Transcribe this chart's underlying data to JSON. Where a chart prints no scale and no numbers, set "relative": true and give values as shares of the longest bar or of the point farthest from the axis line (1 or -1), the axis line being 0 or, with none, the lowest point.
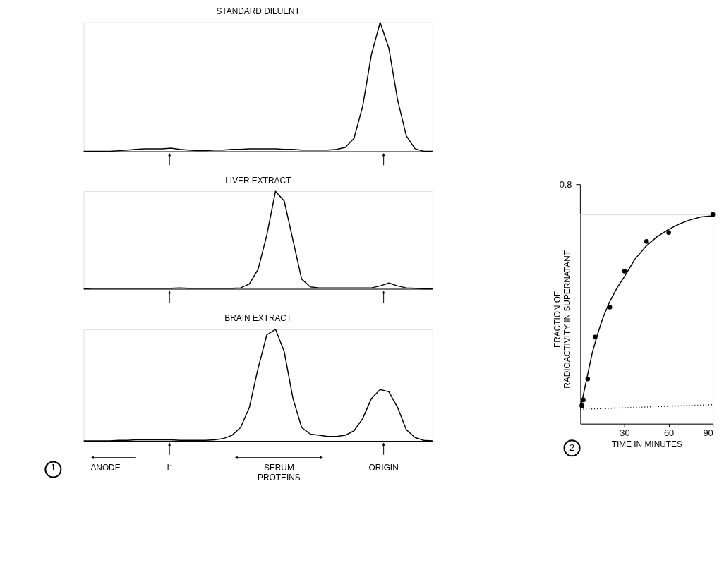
{
  "chart_data": [
    {
      "type": "line",
      "title": "STANDARD DILUENT",
      "relative": true,
      "categories": [
        null,
        null,
        null,
        null,
        null,
        null,
        null,
        null,
        null,
        null,
        null,
        null,
        null,
        null,
        null,
        null,
        null,
        null,
        null,
        null,
        null,
        null,
        null,
        null,
        null,
        null,
        null,
        null,
        null,
        null,
        null,
        null,
        null,
        null,
        null,
        null,
        null,
        null,
        null,
        null,
        null
      ],
      "series": [
        {
          "color": "#000000",
          "line_style": "solid",
          "values": [
            0,
            0,
            0,
            0,
            0.005,
            0.01,
            0.015,
            0.02,
            0.02,
            0.02,
            0.025,
            0.015,
            0.01,
            0.005,
            0.005,
            0.01,
            0.01,
            0.015,
            0.015,
            0.02,
            0.02,
            0.02,
            0.02,
            0.015,
            0.015,
            0.01,
            0.01,
            0.01,
            0.01,
            0.015,
            0.03,
            0.1,
            0.35,
            0.75,
            1,
            0.8,
            0.4,
            0.12,
            0.02,
            0,
            0
          ]
        }
      ]
    },
    {
      "type": "line",
      "title": "LIVER EXTRACT",
      "relative": true,
      "categories": [
        null,
        null,
        null,
        null,
        null,
        null,
        null,
        null,
        null,
        null,
        null,
        null,
        null,
        null,
        null,
        null,
        null,
        null,
        null,
        null,
        null,
        null,
        null,
        null,
        null,
        null,
        null,
        null,
        null,
        null,
        null,
        null,
        null,
        null,
        null,
        null,
        null,
        null,
        null,
        null,
        null
      ],
      "series": [
        {
          "color": "#000000",
          "line_style": "solid",
          "values": [
            0,
            0.005,
            0.005,
            0.005,
            0.005,
            0.005,
            0.005,
            0.005,
            0.005,
            0.005,
            0.005,
            0.01,
            0.005,
            0.005,
            0.005,
            0.005,
            0.005,
            0.005,
            0.01,
            0.05,
            0.2,
            0.55,
            1,
            0.9,
            0.5,
            0.1,
            0.02,
            0.01,
            0.01,
            0.01,
            0.01,
            0.01,
            0.01,
            0.01,
            0.03,
            0.06,
            0.03,
            0.01,
            0.005,
            0,
            0
          ]
        }
      ]
    },
    {
      "type": "line",
      "title": "BRAIN EXTRACT",
      "relative": true,
      "categories": [
        null,
        null,
        null,
        null,
        null,
        null,
        null,
        null,
        null,
        null,
        null,
        null,
        null,
        null,
        null,
        null,
        null,
        null,
        null,
        null,
        null,
        null,
        null,
        null,
        null,
        null,
        null,
        null,
        null,
        null,
        null,
        null,
        null,
        null,
        null,
        null,
        null,
        null,
        null,
        null,
        null
      ],
      "series": [
        {
          "color": "#000000",
          "line_style": "solid",
          "values": [
            0,
            0,
            0,
            0,
            0.005,
            0.005,
            0.01,
            0.01,
            0.01,
            0.01,
            0.01,
            0.005,
            0.005,
            0.005,
            0.005,
            0.01,
            0.02,
            0.05,
            0.12,
            0.3,
            0.65,
            0.95,
            1,
            0.8,
            0.38,
            0.12,
            0.06,
            0.05,
            0.04,
            0.04,
            0.05,
            0.09,
            0.2,
            0.38,
            0.46,
            0.44,
            0.3,
            0.1,
            0.03,
            0.005,
            0
          ]
        }
      ],
      "annotations": [
        "1",
        "ANODE",
        "I⁻",
        "SERUM PROTEINS",
        "ORIGIN"
      ]
    },
    {
      "type": "scatter",
      "xlabel": "TIME IN MINUTES",
      "ylabel": "FRACTION OF RADIOACTIVITY IN SUPERNATANT",
      "grid": false,
      "relative": true,
      "xlim": [
        0,
        90
      ],
      "xticks": [
        30,
        60,
        90
      ],
      "series": [
        {
          "type": "scatter",
          "marker": "circle",
          "color": "#000000",
          "x": [
            1,
            2,
            5,
            10,
            20,
            30,
            45,
            60,
            90
          ],
          "values": [
            0.086,
            0.114,
            0.214,
            0.414,
            0.557,
            0.729,
            0.871,
            0.914,
            1
          ]
        },
        {
          "type": "line",
          "line_style": "solid",
          "color": "#000000",
          "x": [
            0.5,
            3,
            5,
            8,
            11.5,
            15,
            19.5,
            25,
            30.5,
            37,
            45,
            52,
            60,
            67,
            74,
            82,
            90
          ],
          "values": [
            0.083,
            0.171,
            0.236,
            0.336,
            0.423,
            0.5,
            0.577,
            0.65,
            0.709,
            0.786,
            0.851,
            0.893,
            0.929,
            0.954,
            0.973,
            0.989,
            0.994
          ]
        },
        {
          "type": "line",
          "line_style": "dotted",
          "color": "#000000",
          "x": [
            0,
            90
          ],
          "values": [
            0.069,
            0.091
          ]
        }
      ],
      "annotations": [
        "0.8",
        "2"
      ]
    }
  ]
}
